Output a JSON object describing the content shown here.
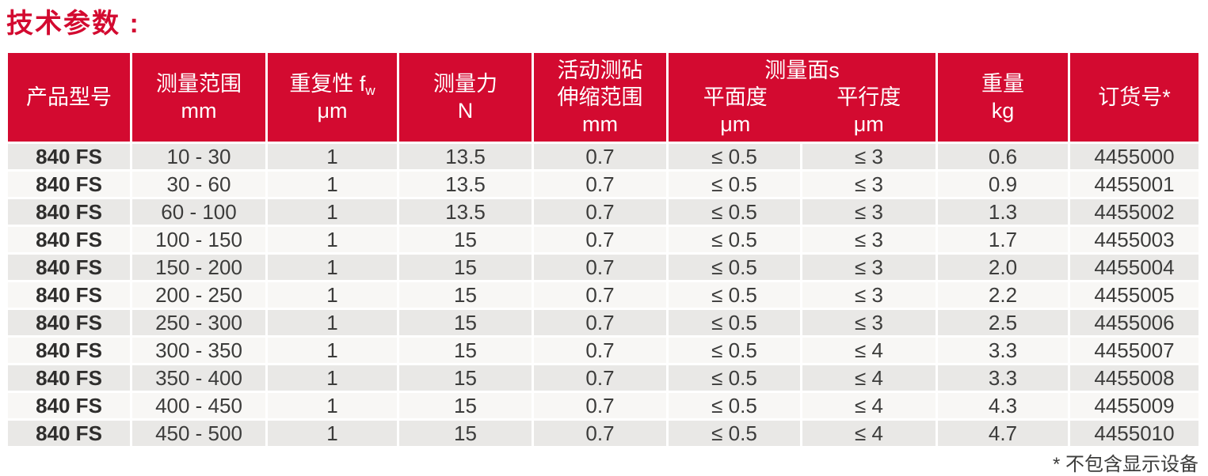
{
  "title": "技术参数 :",
  "accent_color": "#D30A30",
  "footnote": "* 不包含显示设备",
  "table": {
    "header": {
      "model": "产品型号",
      "range_line1": "测量范围",
      "range_line2": "mm",
      "repeat_prefix": "重复性 f",
      "repeat_sub": "w",
      "repeat_unit": "μm",
      "force_line1": "测量力",
      "force_line2": "N",
      "anvil_line1": "活动测砧",
      "anvil_line2": "伸缩范围",
      "anvil_line3": "mm",
      "surfaces_group": "测量面s",
      "flatness": "平面度",
      "flatness_unit": "μm",
      "parallelism": "平行度",
      "parallelism_unit": "μm",
      "weight_line1": "重量",
      "weight_line2": "kg",
      "order": "订货号*"
    },
    "rows": [
      {
        "model": "840 FS",
        "range": "10 - 30",
        "repeatability": "1",
        "force": "13.5",
        "anvil_range": "0.7",
        "flatness": "≤ 0.5",
        "parallelism": "≤ 3",
        "weight": "0.6",
        "order_no": "4455000"
      },
      {
        "model": "840 FS",
        "range": "30 - 60",
        "repeatability": "1",
        "force": "13.5",
        "anvil_range": "0.7",
        "flatness": "≤ 0.5",
        "parallelism": "≤ 3",
        "weight": "0.9",
        "order_no": "4455001"
      },
      {
        "model": "840 FS",
        "range": "60 - 100",
        "repeatability": "1",
        "force": "13.5",
        "anvil_range": "0.7",
        "flatness": "≤ 0.5",
        "parallelism": "≤ 3",
        "weight": "1.3",
        "order_no": "4455002"
      },
      {
        "model": "840 FS",
        "range": "100 - 150",
        "repeatability": "1",
        "force": "15",
        "anvil_range": "0.7",
        "flatness": "≤ 0.5",
        "parallelism": "≤ 3",
        "weight": "1.7",
        "order_no": "4455003"
      },
      {
        "model": "840 FS",
        "range": "150 - 200",
        "repeatability": "1",
        "force": "15",
        "anvil_range": "0.7",
        "flatness": "≤ 0.5",
        "parallelism": "≤ 3",
        "weight": "2.0",
        "order_no": "4455004"
      },
      {
        "model": "840 FS",
        "range": "200 - 250",
        "repeatability": "1",
        "force": "15",
        "anvil_range": "0.7",
        "flatness": "≤ 0.5",
        "parallelism": "≤ 3",
        "weight": "2.2",
        "order_no": "4455005"
      },
      {
        "model": "840 FS",
        "range": "250 - 300",
        "repeatability": "1",
        "force": "15",
        "anvil_range": "0.7",
        "flatness": "≤ 0.5",
        "parallelism": "≤ 3",
        "weight": "2.5",
        "order_no": "4455006"
      },
      {
        "model": "840 FS",
        "range": "300 - 350",
        "repeatability": "1",
        "force": "15",
        "anvil_range": "0.7",
        "flatness": "≤ 0.5",
        "parallelism": "≤ 4",
        "weight": "3.3",
        "order_no": "4455007"
      },
      {
        "model": "840 FS",
        "range": "350 - 400",
        "repeatability": "1",
        "force": "15",
        "anvil_range": "0.7",
        "flatness": "≤ 0.5",
        "parallelism": "≤ 4",
        "weight": "3.3",
        "order_no": "4455008"
      },
      {
        "model": "840 FS",
        "range": "400 - 450",
        "repeatability": "1",
        "force": "15",
        "anvil_range": "0.7",
        "flatness": "≤ 0.5",
        "parallelism": "≤ 4",
        "weight": "4.3",
        "order_no": "4455009"
      },
      {
        "model": "840 FS",
        "range": "450 - 500",
        "repeatability": "1",
        "force": "15",
        "anvil_range": "0.7",
        "flatness": "≤ 0.5",
        "parallelism": "≤ 4",
        "weight": "4.7",
        "order_no": "4455010"
      }
    ]
  }
}
